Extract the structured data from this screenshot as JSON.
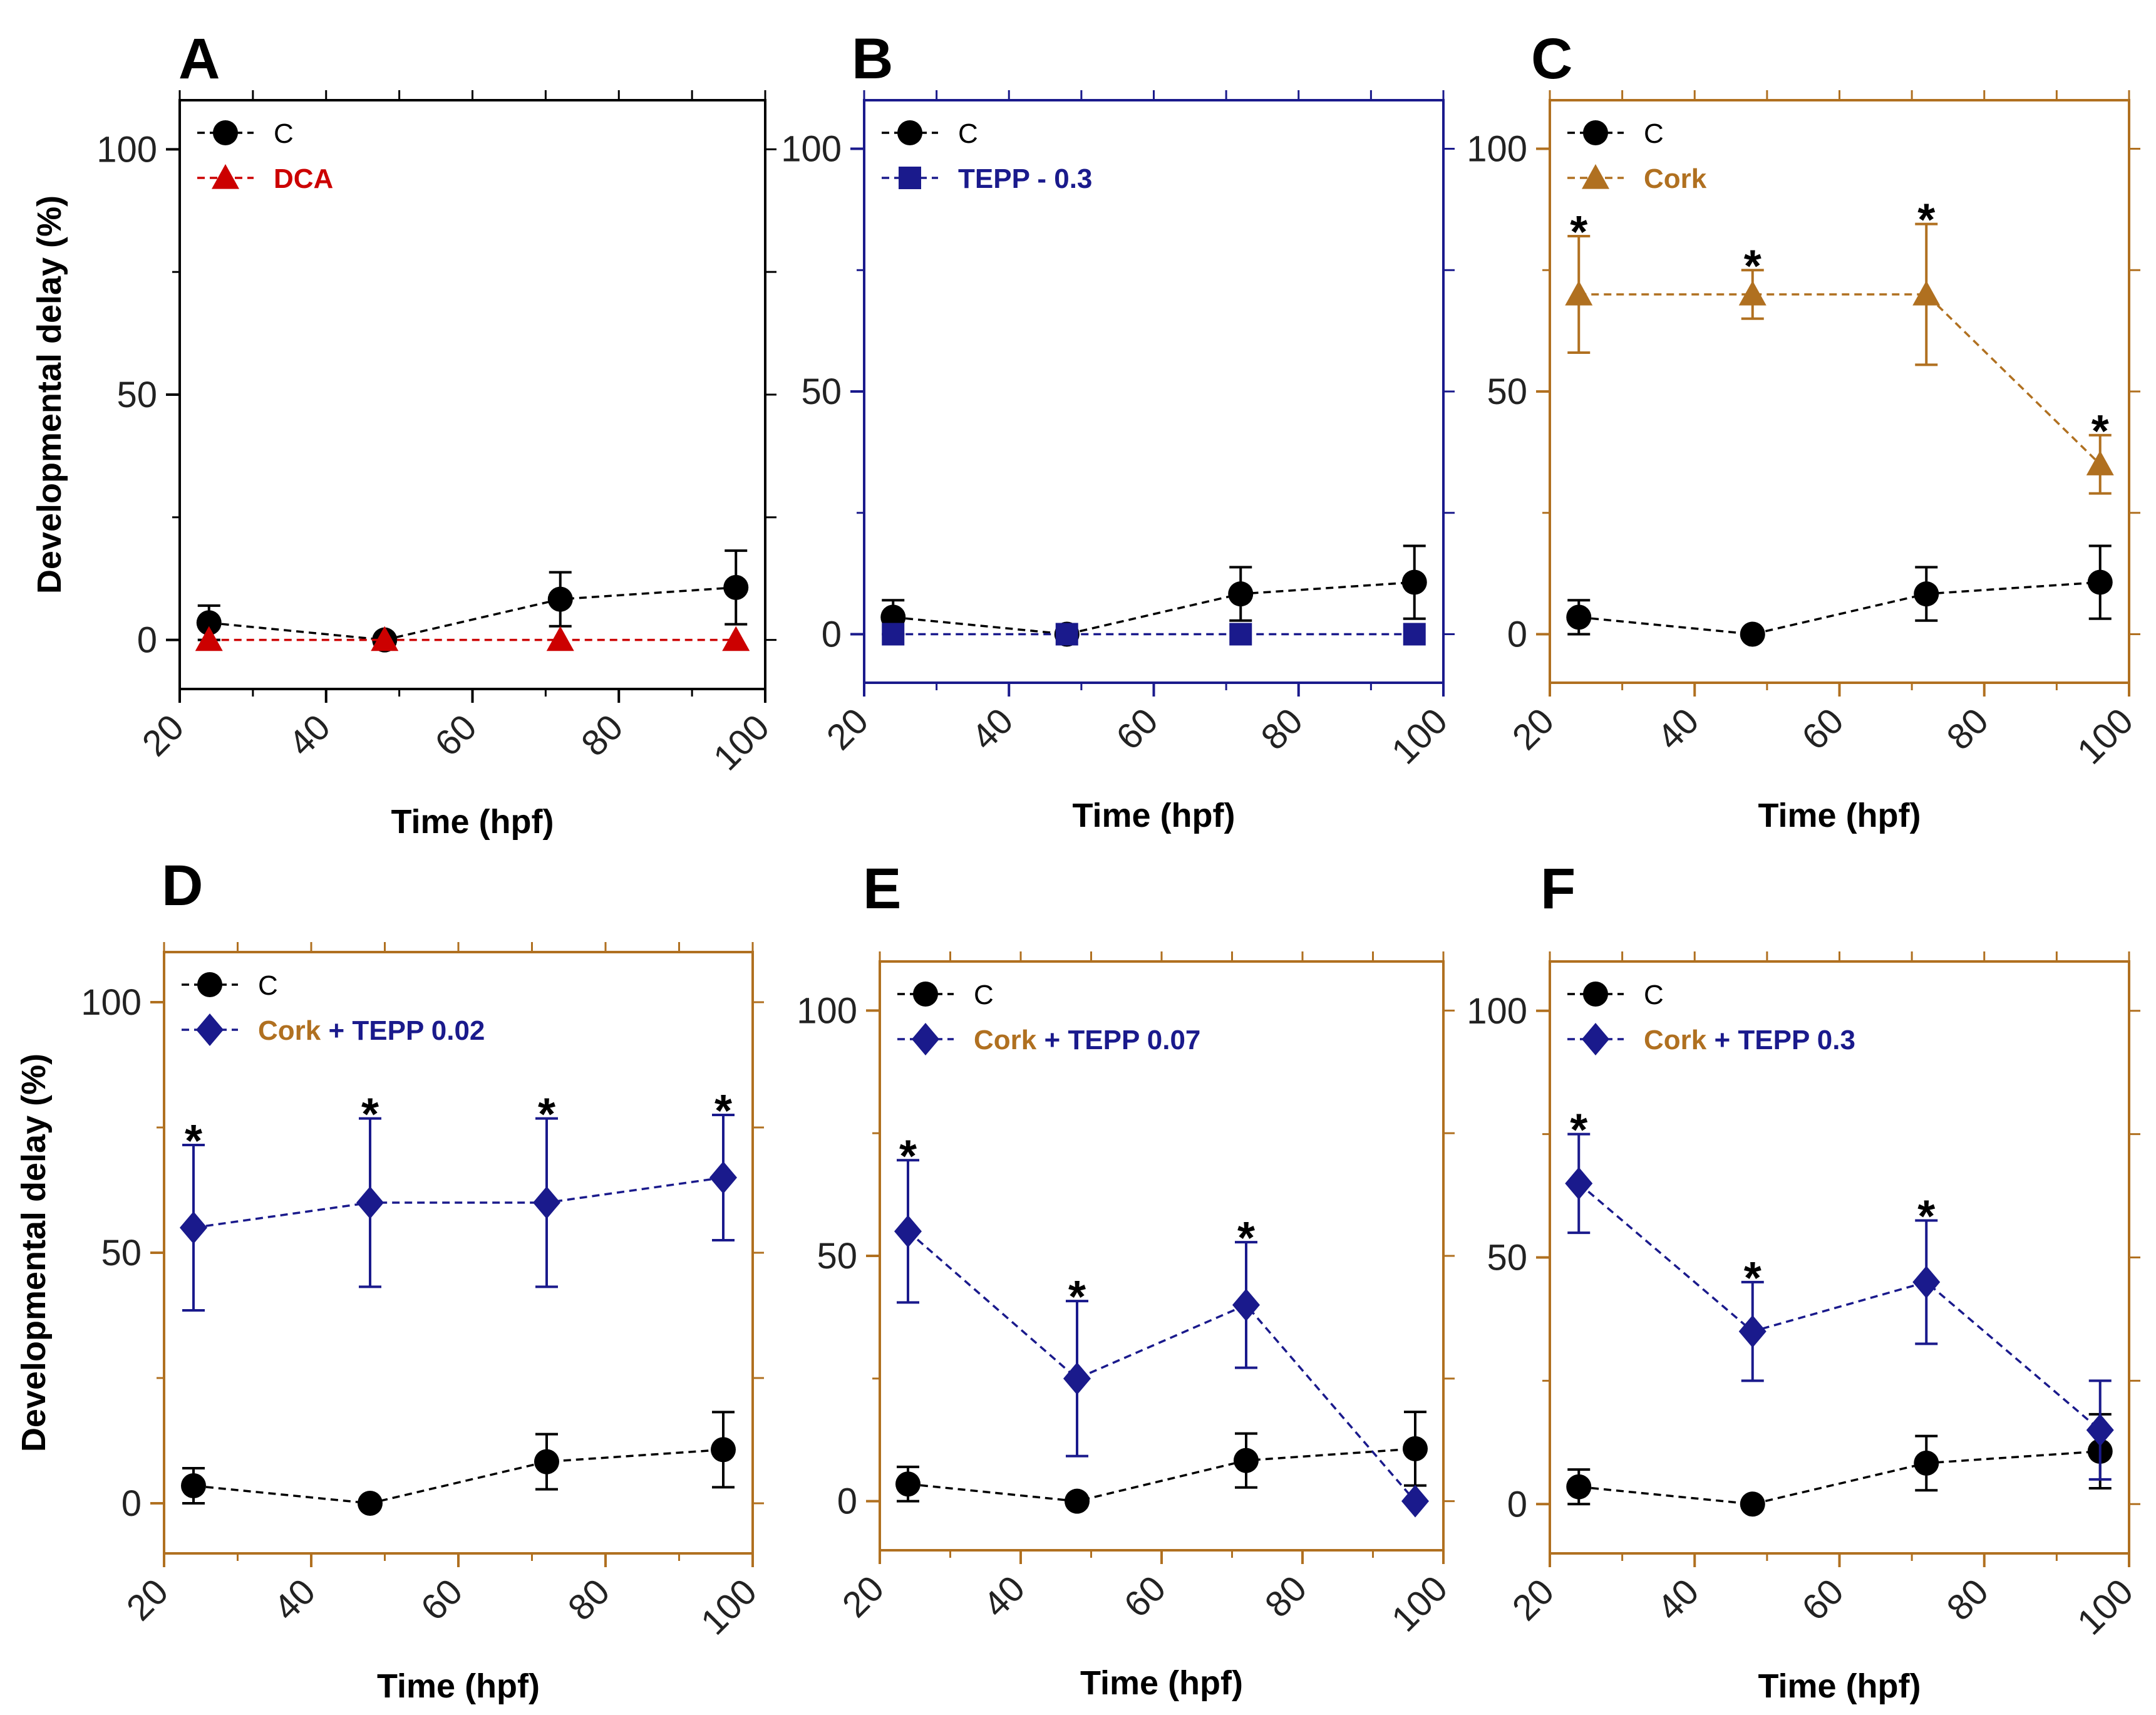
{
  "figure": {
    "series_styles": {
      "C": {
        "color": "#000000",
        "marker": "circle"
      },
      "DCA": {
        "color": "#cc0000",
        "marker": "triangle"
      },
      "TEPP - 0.3": {
        "color": "#1a1a8c",
        "marker": "square"
      },
      "Cork": {
        "color": "#b07020",
        "marker": "triangle"
      },
      "CorkTEPP": {
        "color": "#1a1a8c",
        "marker": "diamond"
      }
    }
  },
  "chart_data": [
    {
      "panel": "A",
      "type": "line",
      "frame_color": "#000000",
      "xlabel": "Time (hpf)",
      "ylabel": "Developmental delay (%)",
      "xlim": [
        20,
        100
      ],
      "ylim": [
        -10,
        110
      ],
      "xticks": [
        20,
        40,
        60,
        80,
        100
      ],
      "yticks": [
        0,
        50,
        100
      ],
      "series": [
        {
          "name": "C",
          "legend": [
            {
              "text": "C",
              "color": "#000000"
            }
          ],
          "color": "#000000",
          "marker": "circle",
          "x": [
            24,
            48,
            72,
            96
          ],
          "y": [
            3.5,
            0,
            8.3,
            10.7
          ],
          "err": [
            3.5,
            0,
            5.5,
            7.5
          ],
          "stars": [
            false,
            false,
            false,
            false
          ]
        },
        {
          "name": "DCA",
          "legend": [
            {
              "text": "DCA",
              "color": "#cc0000"
            }
          ],
          "color": "#cc0000",
          "marker": "triangle",
          "x": [
            24,
            48,
            72,
            96
          ],
          "y": [
            0,
            0,
            0,
            0
          ],
          "err": [
            0,
            0,
            0,
            0
          ],
          "stars": [
            false,
            false,
            false,
            false
          ]
        }
      ]
    },
    {
      "panel": "B",
      "type": "line",
      "frame_color": "#1a1a8c",
      "xlabel": "Time (hpf)",
      "ylabel": "",
      "xlim": [
        20,
        100
      ],
      "ylim": [
        -10,
        110
      ],
      "xticks": [
        20,
        40,
        60,
        80,
        100
      ],
      "yticks": [
        0,
        50,
        100
      ],
      "series": [
        {
          "name": "C",
          "legend": [
            {
              "text": "C",
              "color": "#000000"
            }
          ],
          "color": "#000000",
          "marker": "circle",
          "x": [
            24,
            48,
            72,
            96
          ],
          "y": [
            3.5,
            0,
            8.3,
            10.7
          ],
          "err": [
            3.5,
            0,
            5.5,
            7.5
          ],
          "stars": [
            false,
            false,
            false,
            false
          ]
        },
        {
          "name": "TEPP - 0.3",
          "legend": [
            {
              "text": "TEPP - 0.3",
              "color": "#1a1a8c"
            }
          ],
          "color": "#1a1a8c",
          "marker": "square",
          "x": [
            24,
            48,
            72,
            96
          ],
          "y": [
            0,
            0,
            0,
            0
          ],
          "err": [
            0,
            0,
            0,
            0
          ],
          "stars": [
            false,
            false,
            false,
            false
          ]
        }
      ]
    },
    {
      "panel": "C",
      "type": "line",
      "frame_color": "#b07020",
      "xlabel": "Time (hpf)",
      "ylabel": "",
      "xlim": [
        20,
        100
      ],
      "ylim": [
        -10,
        110
      ],
      "xticks": [
        20,
        40,
        60,
        80,
        100
      ],
      "yticks": [
        0,
        50,
        100
      ],
      "series": [
        {
          "name": "C",
          "legend": [
            {
              "text": "C",
              "color": "#000000"
            }
          ],
          "color": "#000000",
          "marker": "circle",
          "x": [
            24,
            48,
            72,
            96
          ],
          "y": [
            3.5,
            0,
            8.3,
            10.7
          ],
          "err": [
            3.5,
            0,
            5.5,
            7.5
          ],
          "stars": [
            false,
            false,
            false,
            false
          ]
        },
        {
          "name": "Cork",
          "legend": [
            {
              "text": "Cork",
              "color": "#b07020"
            }
          ],
          "color": "#b07020",
          "marker": "triangle",
          "x": [
            24,
            48,
            72,
            96
          ],
          "y": [
            70,
            70,
            70,
            35
          ],
          "err": [
            12,
            5,
            14.5,
            6
          ],
          "stars": [
            true,
            true,
            true,
            true
          ]
        }
      ]
    },
    {
      "panel": "D",
      "type": "line",
      "frame_color": "#b07020",
      "xlabel": "Time (hpf)",
      "ylabel": "Developmental delay (%)",
      "xlim": [
        20,
        100
      ],
      "ylim": [
        -10,
        110
      ],
      "xticks": [
        20,
        40,
        60,
        80,
        100
      ],
      "yticks": [
        0,
        50,
        100
      ],
      "series": [
        {
          "name": "C",
          "legend": [
            {
              "text": "C",
              "color": "#000000"
            }
          ],
          "color": "#000000",
          "marker": "circle",
          "x": [
            24,
            48,
            72,
            96
          ],
          "y": [
            3.5,
            0,
            8.3,
            10.7
          ],
          "err": [
            3.5,
            0,
            5.5,
            7.5
          ],
          "stars": [
            false,
            false,
            false,
            false
          ]
        },
        {
          "name": "Cork + TEPP 0.02",
          "legend": [
            {
              "text": "Cork",
              "color": "#b07020"
            },
            {
              "text": " + TEPP 0.02",
              "color": "#1a1a8c"
            }
          ],
          "color": "#1a1a8c",
          "marker": "diamond",
          "x": [
            24,
            48,
            72,
            96
          ],
          "y": [
            55,
            60,
            60,
            65
          ],
          "err": [
            16.5,
            16.8,
            16.8,
            12.5
          ],
          "stars": [
            true,
            true,
            true,
            true
          ]
        }
      ]
    },
    {
      "panel": "E",
      "type": "line",
      "frame_color": "#b07020",
      "xlabel": "Time (hpf)",
      "ylabel": "",
      "xlim": [
        20,
        100
      ],
      "ylim": [
        -10,
        110
      ],
      "xticks": [
        20,
        40,
        60,
        80,
        100
      ],
      "yticks": [
        0,
        50,
        100
      ],
      "series": [
        {
          "name": "C",
          "legend": [
            {
              "text": "C",
              "color": "#000000"
            }
          ],
          "color": "#000000",
          "marker": "circle",
          "x": [
            24,
            48,
            72,
            96
          ],
          "y": [
            3.5,
            0,
            8.3,
            10.7
          ],
          "err": [
            3.5,
            0,
            5.5,
            7.5
          ],
          "stars": [
            false,
            false,
            false,
            false
          ]
        },
        {
          "name": "Cork + TEPP 0.07",
          "legend": [
            {
              "text": "Cork",
              "color": "#b07020"
            },
            {
              "text": " + TEPP 0.07",
              "color": "#1a1a8c"
            }
          ],
          "color": "#1a1a8c",
          "marker": "diamond",
          "x": [
            24,
            48,
            72,
            96
          ],
          "y": [
            55,
            25,
            40,
            0
          ],
          "err": [
            14.5,
            15.8,
            12.8,
            0
          ],
          "stars": [
            true,
            true,
            true,
            false
          ]
        }
      ]
    },
    {
      "panel": "F",
      "type": "line",
      "frame_color": "#b07020",
      "xlabel": "Time (hpf)",
      "ylabel": "",
      "xlim": [
        20,
        100
      ],
      "ylim": [
        -10,
        110
      ],
      "xticks": [
        20,
        40,
        60,
        80,
        100
      ],
      "yticks": [
        0,
        50,
        100
      ],
      "series": [
        {
          "name": "C",
          "legend": [
            {
              "text": "C",
              "color": "#000000"
            }
          ],
          "color": "#000000",
          "marker": "circle",
          "x": [
            24,
            48,
            72,
            96
          ],
          "y": [
            3.5,
            0,
            8.3,
            10.7
          ],
          "err": [
            3.5,
            0,
            5.5,
            7.5
          ],
          "stars": [
            false,
            false,
            false,
            false
          ]
        },
        {
          "name": "Cork + TEPP 0.3",
          "legend": [
            {
              "text": "Cork",
              "color": "#b07020"
            },
            {
              "text": " + TEPP 0.3",
              "color": "#1a1a8c"
            }
          ],
          "color": "#1a1a8c",
          "marker": "diamond",
          "x": [
            24,
            48,
            72,
            96
          ],
          "y": [
            65,
            35,
            45,
            15
          ],
          "err": [
            10,
            10,
            12.5,
            10
          ],
          "stars": [
            true,
            true,
            true,
            false
          ]
        }
      ]
    }
  ]
}
